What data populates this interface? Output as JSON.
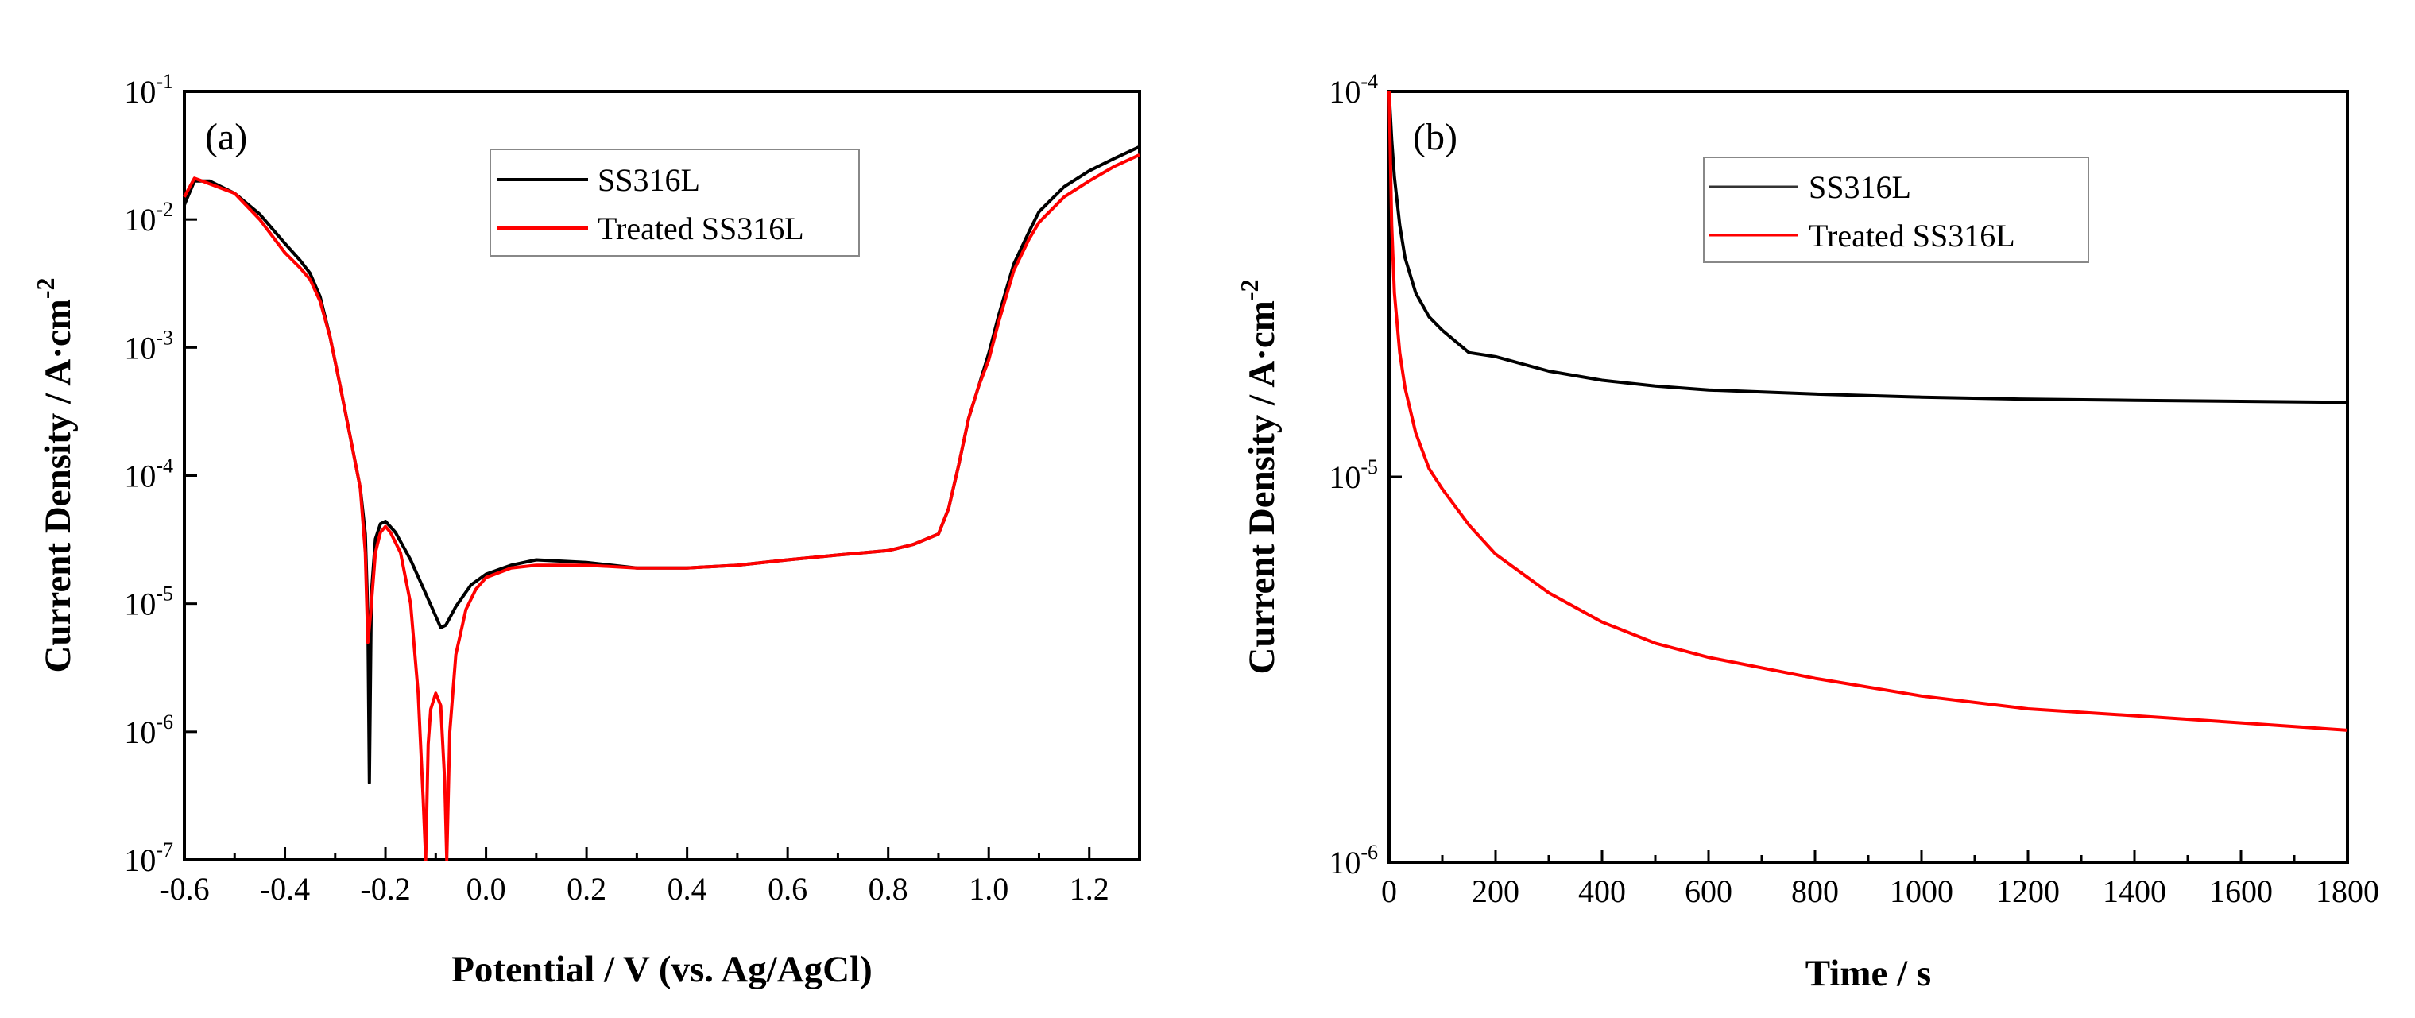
{
  "chart_data": [
    {
      "type": "line",
      "panel_label": "(a)",
      "xlabel": "Potential / V (vs. Ag/AgCl)",
      "ylabel_main": "Current Density / A·cm",
      "ylabel_sup": "-2",
      "xlim": [
        -0.6,
        1.3
      ],
      "yscale": "log",
      "ylim": [
        1e-07,
        0.1
      ],
      "x_ticks": [
        "-0.6",
        "-0.4",
        "-0.2",
        "0.0",
        "0.2",
        "0.4",
        "0.6",
        "0.8",
        "1.0",
        "1.2"
      ],
      "x_tick_values": [
        -0.6,
        -0.4,
        -0.2,
        0.0,
        0.2,
        0.4,
        0.6,
        0.8,
        1.0,
        1.2
      ],
      "y_ticks": [
        {
          "base": "10",
          "exp": "-7",
          "value": 1e-07
        },
        {
          "base": "10",
          "exp": "-6",
          "value": 1e-06
        },
        {
          "base": "10",
          "exp": "-5",
          "value": 1e-05
        },
        {
          "base": "10",
          "exp": "-4",
          "value": 0.0001
        },
        {
          "base": "10",
          "exp": "-3",
          "value": 0.001
        },
        {
          "base": "10",
          "exp": "-2",
          "value": 0.01
        },
        {
          "base": "10",
          "exp": "-1",
          "value": 0.1
        }
      ],
      "legend_position": "top-center",
      "series": [
        {
          "name": "SS316L",
          "color": "#000000",
          "points": [
            [
              -0.6,
              0.013
            ],
            [
              -0.58,
              0.02
            ],
            [
              -0.55,
              0.02
            ],
            [
              -0.5,
              0.016
            ],
            [
              -0.45,
              0.011
            ],
            [
              -0.4,
              0.0065
            ],
            [
              -0.37,
              0.0048
            ],
            [
              -0.35,
              0.0038
            ],
            [
              -0.33,
              0.0025
            ],
            [
              -0.31,
              0.0012
            ],
            [
              -0.29,
              0.0005
            ],
            [
              -0.27,
              0.0002
            ],
            [
              -0.25,
              8e-05
            ],
            [
              -0.24,
              3.5e-05
            ],
            [
              -0.235,
              8e-06
            ],
            [
              -0.232,
              4e-07
            ],
            [
              -0.228,
              1.2e-05
            ],
            [
              -0.22,
              3.2e-05
            ],
            [
              -0.21,
              4.2e-05
            ],
            [
              -0.2,
              4.4e-05
            ],
            [
              -0.18,
              3.6e-05
            ],
            [
              -0.15,
              2.2e-05
            ],
            [
              -0.12,
              1.2e-05
            ],
            [
              -0.1,
              8e-06
            ],
            [
              -0.09,
              6.5e-06
            ],
            [
              -0.08,
              6.8e-06
            ],
            [
              -0.06,
              9.5e-06
            ],
            [
              -0.03,
              1.4e-05
            ],
            [
              0.0,
              1.7e-05
            ],
            [
              0.05,
              2e-05
            ],
            [
              0.1,
              2.2e-05
            ],
            [
              0.2,
              2.1e-05
            ],
            [
              0.3,
              1.9e-05
            ],
            [
              0.4,
              1.9e-05
            ],
            [
              0.5,
              2e-05
            ],
            [
              0.6,
              2.2e-05
            ],
            [
              0.7,
              2.4e-05
            ],
            [
              0.8,
              2.6e-05
            ],
            [
              0.85,
              2.9e-05
            ],
            [
              0.9,
              3.5e-05
            ],
            [
              0.92,
              5.5e-05
            ],
            [
              0.94,
              0.00012
            ],
            [
              0.96,
              0.00028
            ],
            [
              0.98,
              0.0005
            ],
            [
              1.0,
              0.0009
            ],
            [
              1.02,
              0.0018
            ],
            [
              1.05,
              0.0045
            ],
            [
              1.08,
              0.008
            ],
            [
              1.1,
              0.0115
            ],
            [
              1.15,
              0.018
            ],
            [
              1.2,
              0.024
            ],
            [
              1.25,
              0.03
            ],
            [
              1.3,
              0.037
            ]
          ]
        },
        {
          "name": "Treated SS316L",
          "color": "#ff0000",
          "points": [
            [
              -0.6,
              0.015
            ],
            [
              -0.58,
              0.021
            ],
            [
              -0.55,
              0.019
            ],
            [
              -0.5,
              0.016
            ],
            [
              -0.45,
              0.01
            ],
            [
              -0.4,
              0.0055
            ],
            [
              -0.37,
              0.0042
            ],
            [
              -0.35,
              0.0034
            ],
            [
              -0.33,
              0.0023
            ],
            [
              -0.31,
              0.0012
            ],
            [
              -0.29,
              0.0005
            ],
            [
              -0.27,
              0.0002
            ],
            [
              -0.25,
              8e-05
            ],
            [
              -0.24,
              2.5e-05
            ],
            [
              -0.235,
              5e-06
            ],
            [
              -0.23,
              8e-06
            ],
            [
              -0.22,
              2.5e-05
            ],
            [
              -0.21,
              3.6e-05
            ],
            [
              -0.2,
              4e-05
            ],
            [
              -0.19,
              3.6e-05
            ],
            [
              -0.17,
              2.5e-05
            ],
            [
              -0.15,
              1e-05
            ],
            [
              -0.135,
              2e-06
            ],
            [
              -0.125,
              3e-07
            ],
            [
              -0.12,
              1e-07
            ],
            [
              -0.115,
              8e-07
            ],
            [
              -0.11,
              1.5e-06
            ],
            [
              -0.1,
              2e-06
            ],
            [
              -0.09,
              1.6e-06
            ],
            [
              -0.082,
              4e-07
            ],
            [
              -0.078,
              1e-07
            ],
            [
              -0.072,
              1e-06
            ],
            [
              -0.06,
              4e-06
            ],
            [
              -0.04,
              9e-06
            ],
            [
              -0.02,
              1.3e-05
            ],
            [
              0.0,
              1.6e-05
            ],
            [
              0.05,
              1.9e-05
            ],
            [
              0.1,
              2e-05
            ],
            [
              0.2,
              2e-05
            ],
            [
              0.3,
              1.9e-05
            ],
            [
              0.4,
              1.9e-05
            ],
            [
              0.5,
              2e-05
            ],
            [
              0.6,
              2.2e-05
            ],
            [
              0.7,
              2.4e-05
            ],
            [
              0.8,
              2.6e-05
            ],
            [
              0.85,
              2.9e-05
            ],
            [
              0.9,
              3.5e-05
            ],
            [
              0.92,
              5.5e-05
            ],
            [
              0.94,
              0.00012
            ],
            [
              0.96,
              0.00028
            ],
            [
              0.98,
              0.0005
            ],
            [
              1.0,
              0.0008
            ],
            [
              1.02,
              0.0016
            ],
            [
              1.05,
              0.004
            ],
            [
              1.08,
              0.007
            ],
            [
              1.1,
              0.0095
            ],
            [
              1.15,
              0.015
            ],
            [
              1.2,
              0.02
            ],
            [
              1.25,
              0.026
            ],
            [
              1.3,
              0.032
            ]
          ]
        }
      ]
    },
    {
      "type": "line",
      "panel_label": "(b)",
      "xlabel": "Time / s",
      "ylabel_main": "Current Density / A·cm",
      "ylabel_sup": "-2",
      "xlim": [
        0,
        1800
      ],
      "yscale": "log",
      "ylim": [
        1e-06,
        0.0001
      ],
      "x_ticks": [
        "0",
        "200",
        "400",
        "600",
        "800",
        "1000",
        "1200",
        "1400",
        "1600",
        "1800"
      ],
      "x_tick_values": [
        0,
        200,
        400,
        600,
        800,
        1000,
        1200,
        1400,
        1600,
        1800
      ],
      "y_ticks": [
        {
          "base": "10",
          "exp": "-6",
          "value": 1e-06
        },
        {
          "base": "10",
          "exp": "-5",
          "value": 1e-05
        },
        {
          "base": "10",
          "exp": "-4",
          "value": 0.0001
        }
      ],
      "legend_position": "top-center",
      "series": [
        {
          "name": "SS316L",
          "color": "#000000",
          "points": [
            [
              0,
              0.0001
            ],
            [
              5,
              7.5e-05
            ],
            [
              10,
              6e-05
            ],
            [
              20,
              4.5e-05
            ],
            [
              30,
              3.7e-05
            ],
            [
              50,
              3e-05
            ],
            [
              75,
              2.6e-05
            ],
            [
              100,
              2.4e-05
            ],
            [
              150,
              2.1e-05
            ],
            [
              200,
              2.05e-05
            ],
            [
              300,
              1.88e-05
            ],
            [
              400,
              1.78e-05
            ],
            [
              500,
              1.72e-05
            ],
            [
              600,
              1.68e-05
            ],
            [
              800,
              1.64e-05
            ],
            [
              1000,
              1.61e-05
            ],
            [
              1200,
              1.59e-05
            ],
            [
              1400,
              1.58e-05
            ],
            [
              1600,
              1.57e-05
            ],
            [
              1800,
              1.56e-05
            ]
          ]
        },
        {
          "name": "Treated SS316L",
          "color": "#ff0000",
          "points": [
            [
              0,
              0.0001
            ],
            [
              5,
              4.5e-05
            ],
            [
              10,
              3e-05
            ],
            [
              20,
              2.1e-05
            ],
            [
              30,
              1.7e-05
            ],
            [
              50,
              1.3e-05
            ],
            [
              75,
              1.05e-05
            ],
            [
              100,
              9.3e-06
            ],
            [
              150,
              7.5e-06
            ],
            [
              200,
              6.3e-06
            ],
            [
              300,
              5e-06
            ],
            [
              400,
              4.2e-06
            ],
            [
              500,
              3.7e-06
            ],
            [
              600,
              3.4e-06
            ],
            [
              800,
              3e-06
            ],
            [
              1000,
              2.7e-06
            ],
            [
              1200,
              2.5e-06
            ],
            [
              1400,
              2.4e-06
            ],
            [
              1600,
              2.3e-06
            ],
            [
              1800,
              2.2e-06
            ]
          ]
        }
      ]
    }
  ]
}
